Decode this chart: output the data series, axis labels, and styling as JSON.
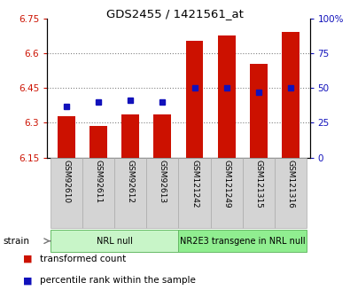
{
  "title": "GDS2455 / 1421561_at",
  "samples": [
    "GSM92610",
    "GSM92611",
    "GSM92612",
    "GSM92613",
    "GSM121242",
    "GSM121249",
    "GSM121315",
    "GSM121316"
  ],
  "bar_values": [
    6.33,
    6.285,
    6.335,
    6.335,
    6.655,
    6.675,
    6.555,
    6.69
  ],
  "percentile_values": [
    37,
    40,
    41,
    40,
    50,
    50,
    47,
    50
  ],
  "groups": [
    {
      "label": "NRL null",
      "start": 0,
      "end": 4,
      "color": "#c8f5c8"
    },
    {
      "label": "NR2E3 transgene in NRL null",
      "start": 4,
      "end": 8,
      "color": "#90ee90"
    }
  ],
  "ylim_left": [
    6.15,
    6.75
  ],
  "ylim_right": [
    0,
    100
  ],
  "yticks_left": [
    6.15,
    6.3,
    6.45,
    6.6,
    6.75
  ],
  "ytick_labels_left": [
    "6.15",
    "6.3",
    "6.45",
    "6.6",
    "6.75"
  ],
  "yticks_right": [
    0,
    25,
    50,
    75,
    100
  ],
  "ytick_labels_right": [
    "0",
    "25",
    "50",
    "75",
    "100%"
  ],
  "bar_color": "#cc1100",
  "marker_color": "#1111bb",
  "bar_width": 0.55,
  "grid_lines_at": [
    6.3,
    6.45,
    6.6
  ],
  "legend_items": [
    "transformed count",
    "percentile rank within the sample"
  ],
  "base_value": 6.15,
  "xlim": [
    -0.6,
    7.6
  ]
}
